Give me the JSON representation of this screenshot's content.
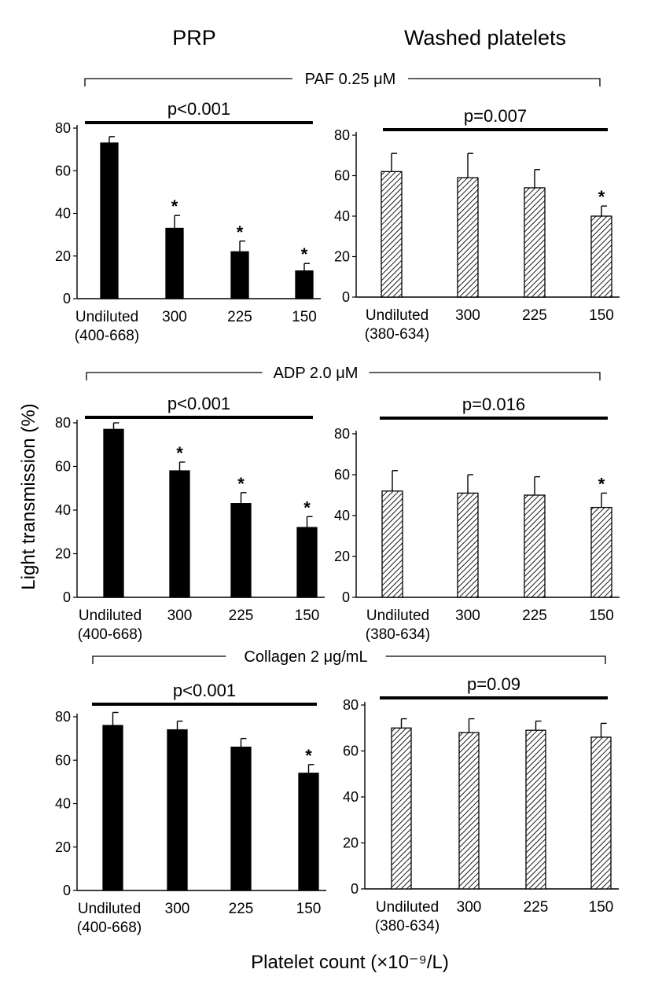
{
  "column_titles": [
    "PRP",
    "Washed platelets"
  ],
  "y_axis_label": "Light transmission (%)",
  "x_axis_label": "Platelet count (×10⁻⁹/L)",
  "colors": {
    "prp_bar": "#000000",
    "washed_hatch": "#000000",
    "background": "#ffffff"
  },
  "chart_data": [
    {
      "type": "bar",
      "agonist": "PAF 0.25 μM",
      "group": "PRP",
      "pvalue": "p<0.001",
      "categories": [
        "Undiluted",
        "300",
        "225",
        "150"
      ],
      "undiluted_range": "(400-668)",
      "values": [
        73,
        33,
        22,
        13
      ],
      "errors": [
        3,
        6,
        5,
        3.5
      ],
      "significant": [
        false,
        true,
        true,
        true
      ],
      "yticks": [
        "0",
        "20",
        "40",
        "60",
        "80"
      ],
      "ylim": [
        0,
        80
      ],
      "ylabel": "Light transmission (%)"
    },
    {
      "type": "bar",
      "agonist": "PAF 0.25 μM",
      "group": "Washed platelets",
      "pvalue": "p=0.007",
      "categories": [
        "Undiluted",
        "300",
        "225",
        "150"
      ],
      "undiluted_range": "(380-634)",
      "values": [
        62,
        59,
        54,
        40
      ],
      "errors": [
        9,
        12,
        9,
        5
      ],
      "significant": [
        false,
        false,
        false,
        true
      ],
      "yticks": [
        "0",
        "20",
        "40",
        "60",
        "80"
      ],
      "ylim": [
        0,
        80
      ],
      "ylabel": "Light transmission (%)"
    },
    {
      "type": "bar",
      "agonist": "ADP 2.0 μM",
      "group": "PRP",
      "pvalue": "p<0.001",
      "categories": [
        "Undiluted",
        "300",
        "225",
        "150"
      ],
      "undiluted_range": "(400-668)",
      "values": [
        77,
        58,
        43,
        32
      ],
      "errors": [
        3,
        4,
        5,
        5
      ],
      "significant": [
        false,
        true,
        true,
        true
      ],
      "yticks": [
        "0",
        "20",
        "40",
        "60",
        "80"
      ],
      "ylim": [
        0,
        80
      ],
      "ylabel": "Light transmission (%)"
    },
    {
      "type": "bar",
      "agonist": "ADP 2.0 μM",
      "group": "Washed platelets",
      "pvalue": "p=0.016",
      "categories": [
        "Undiluted",
        "300",
        "225",
        "150"
      ],
      "undiluted_range": "(380-634)",
      "values": [
        52,
        51,
        50,
        44
      ],
      "errors": [
        10,
        9,
        9,
        7
      ],
      "significant": [
        false,
        false,
        false,
        true
      ],
      "yticks": [
        "0",
        "20",
        "40",
        "60",
        "80"
      ],
      "ylim": [
        0,
        80
      ],
      "ylabel": "Light transmission (%)"
    },
    {
      "type": "bar",
      "agonist": "Collagen 2 μg/mL",
      "group": "PRP",
      "pvalue": "p<0.001",
      "categories": [
        "Undiluted",
        "300",
        "225",
        "150"
      ],
      "undiluted_range": "(400-668)",
      "values": [
        76,
        74,
        66,
        54
      ],
      "errors": [
        6,
        4,
        4,
        4
      ],
      "significant": [
        false,
        false,
        false,
        true
      ],
      "yticks": [
        "0",
        "20",
        "40",
        "60",
        "80"
      ],
      "ylim": [
        0,
        80
      ],
      "ylabel": "Light transmission (%)"
    },
    {
      "type": "bar",
      "agonist": "Collagen 2 μg/mL",
      "group": "Washed platelets",
      "pvalue": "p=0.09",
      "categories": [
        "Undiluted",
        "300",
        "225",
        "150"
      ],
      "undiluted_range": "(380-634)",
      "values": [
        70,
        68,
        69,
        66
      ],
      "errors": [
        4,
        6,
        4,
        6
      ],
      "significant": [
        false,
        false,
        false,
        false
      ],
      "yticks": [
        "0",
        "20",
        "40",
        "60",
        "80"
      ],
      "ylim": [
        0,
        80
      ],
      "ylabel": "Light transmission (%)"
    }
  ]
}
